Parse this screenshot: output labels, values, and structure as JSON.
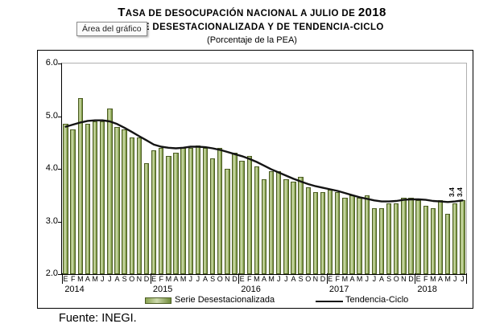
{
  "title": {
    "line1_initial": "T",
    "line1_caps": "ASA DE DESOCUPACIÓN NACIONAL A JULIO DE ",
    "line1_year": "2018",
    "line2": "SERIE DESESTACIONALIZADA Y DE TENDENCIA-CICLO",
    "line3": "(Porcentaje de la PEA)"
  },
  "tooltip": "Área del gráfico",
  "legend": {
    "bar_label": "Serie Desestacionalizada",
    "line_label": "Tendencia-Ciclo"
  },
  "footer": "Fuente: INEGI.",
  "colors": {
    "bar_fill_light": "#cdd9ad",
    "bar_fill_mid": "#9cb466",
    "bar_fill_dark": "#6f8a3a",
    "bar_border": "#4c5d23",
    "trend_line": "#141414",
    "plot_border_gray": "#b0b0b0",
    "axis_black": "#000000"
  },
  "chart_data": {
    "type": "bar",
    "combo": "bar+line",
    "title": "Tasa de desocupación nacional a julio de 2018",
    "subtitle": "Serie desestacionalizada y de tendencia-ciclo",
    "ylabel": "Porcentaje de la PEA",
    "ylim": [
      2.0,
      6.0
    ],
    "yticks": [
      "6.0",
      "5.0",
      "4.0",
      "3.0",
      "2.0"
    ],
    "grid": "top border only",
    "legend_position": "bottom",
    "groups": [
      {
        "year": "2014",
        "months": [
          "E",
          "F",
          "M",
          "A",
          "M",
          "J",
          "J",
          "A",
          "S",
          "O",
          "N",
          "D"
        ]
      },
      {
        "year": "2015",
        "months": [
          "E",
          "F",
          "M",
          "A",
          "M",
          "J",
          "J",
          "A",
          "S",
          "O",
          "N",
          "D"
        ]
      },
      {
        "year": "2016",
        "months": [
          "E",
          "F",
          "M",
          "A",
          "M",
          "J",
          "J",
          "A",
          "S",
          "O",
          "N",
          "D"
        ]
      },
      {
        "year": "2017",
        "months": [
          "E",
          "F",
          "M",
          "A",
          "M",
          "J",
          "J",
          "A",
          "S",
          "O",
          "N",
          "D"
        ]
      },
      {
        "year": "2018",
        "months": [
          "E",
          "F",
          "M",
          "A",
          "M",
          "J",
          "J"
        ]
      }
    ],
    "series": [
      {
        "name": "Serie Desestacionalizada",
        "type": "bar",
        "values": [
          4.85,
          4.75,
          5.35,
          4.85,
          4.9,
          4.9,
          5.15,
          4.8,
          4.75,
          4.6,
          4.6,
          4.1,
          4.35,
          4.4,
          4.25,
          4.3,
          4.4,
          4.4,
          4.45,
          4.4,
          4.2,
          4.4,
          4.0,
          4.3,
          4.15,
          4.25,
          4.05,
          3.8,
          3.95,
          3.95,
          3.8,
          3.75,
          3.85,
          3.65,
          3.55,
          3.55,
          3.6,
          3.55,
          3.45,
          3.5,
          3.45,
          3.5,
          3.25,
          3.25,
          3.35,
          3.35,
          3.45,
          3.45,
          3.4,
          3.3,
          3.25,
          3.4,
          3.15,
          3.35,
          3.4
        ]
      },
      {
        "name": "Tendencia-Ciclo",
        "type": "line",
        "values": [
          4.8,
          4.84,
          4.88,
          4.91,
          4.92,
          4.92,
          4.9,
          4.85,
          4.78,
          4.7,
          4.62,
          4.54,
          4.46,
          4.42,
          4.4,
          4.39,
          4.4,
          4.42,
          4.42,
          4.41,
          4.39,
          4.36,
          4.32,
          4.28,
          4.24,
          4.19,
          4.13,
          4.06,
          3.99,
          3.93,
          3.87,
          3.81,
          3.76,
          3.71,
          3.67,
          3.64,
          3.61,
          3.58,
          3.54,
          3.5,
          3.46,
          3.43,
          3.4,
          3.38,
          3.38,
          3.39,
          3.41,
          3.42,
          3.42,
          3.41,
          3.39,
          3.38,
          3.37,
          3.38,
          3.4
        ]
      }
    ],
    "annotations": [
      "3.4",
      "3.4"
    ]
  }
}
